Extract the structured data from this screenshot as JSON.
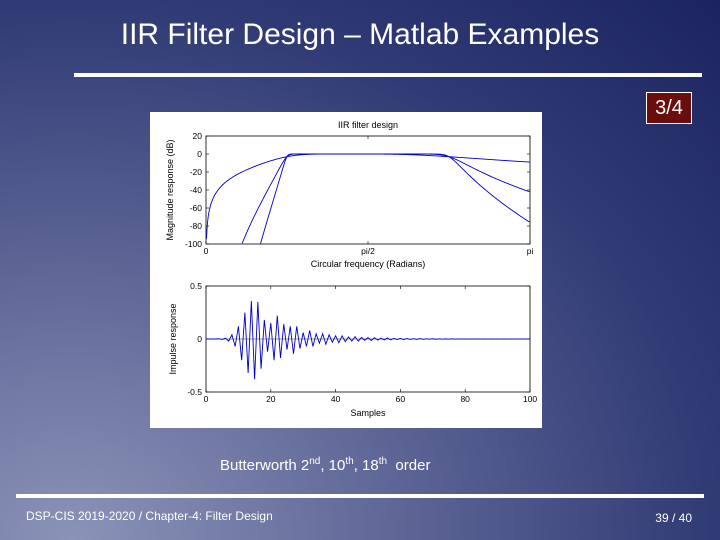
{
  "slide": {
    "title": "IIR Filter Design – Matlab Examples",
    "page_badge": "3/4",
    "caption": {
      "text": "Butterworth 2",
      "sup1": "nd",
      "mid1": ", 10",
      "sup2": "th",
      "mid2": ", 18",
      "sup3": "th",
      "tail": "  order"
    },
    "footer_left": "DSP-CIS 2019-2020  /  Chapter-4: Filter Design",
    "footer_right": "39 / 40"
  },
  "colors": {
    "curve": "#0000cc",
    "badge_bg": "#6a0d0d"
  },
  "chart_data": [
    {
      "type": "line",
      "title": "IIR filter design",
      "xlabel": "Circular frequency (Radians)",
      "ylabel": "Magnitude response (dB)",
      "xlim": [
        0,
        3.1416
      ],
      "ylim": [
        -100,
        20
      ],
      "x_ticks": [
        {
          "value": 0,
          "label": "0"
        },
        {
          "value": 1.5708,
          "label": "pi/2"
        },
        {
          "value": 3.1416,
          "label": "pi"
        }
      ],
      "y_ticks": [
        {
          "value": 20,
          "label": "20"
        },
        {
          "value": 0,
          "label": "0"
        },
        {
          "value": -20,
          "label": "-20"
        },
        {
          "value": -40,
          "label": "-40"
        },
        {
          "value": -60,
          "label": "-60"
        },
        {
          "value": -80,
          "label": "-80"
        },
        {
          "value": -100,
          "label": "-100"
        }
      ],
      "passband": [
        0.785,
        2.356
      ],
      "series": [
        {
          "order": 2
        },
        {
          "order": 10
        },
        {
          "order": 18
        }
      ]
    },
    {
      "type": "line",
      "title": "",
      "xlabel": "Samples",
      "ylabel": "Impulse response",
      "xlim": [
        0,
        100
      ],
      "ylim": [
        -0.5,
        0.5
      ],
      "x_ticks": [
        {
          "value": 0,
          "label": "0"
        },
        {
          "value": 20,
          "label": "20"
        },
        {
          "value": 40,
          "label": "40"
        },
        {
          "value": 60,
          "label": "60"
        },
        {
          "value": 80,
          "label": "80"
        },
        {
          "value": 100,
          "label": "100"
        }
      ],
      "y_ticks": [
        {
          "value": 0.5,
          "label": "0.5"
        },
        {
          "value": 0,
          "label": "0"
        },
        {
          "value": -0.5,
          "label": "-0.5"
        }
      ],
      "series": [
        {
          "x": [
            0,
            1,
            2,
            3,
            4,
            5,
            6,
            7,
            8,
            9,
            10,
            11,
            12,
            13,
            14,
            15,
            16,
            17,
            18,
            19,
            20,
            21,
            22,
            23,
            24,
            25,
            26,
            27,
            28,
            29,
            30,
            31,
            32,
            33,
            34,
            35,
            36,
            37,
            38,
            39,
            40,
            41,
            42,
            43,
            44,
            45,
            46,
            47,
            48,
            49,
            50,
            51,
            52,
            53,
            54,
            55,
            56,
            57,
            58,
            59,
            60,
            61,
            62,
            63,
            64,
            65,
            66,
            67,
            68,
            69,
            70,
            71,
            72,
            73,
            74,
            75,
            76,
            77,
            78,
            79,
            80,
            81,
            82,
            83,
            84,
            85,
            86,
            87,
            88,
            89,
            90,
            91,
            92,
            93,
            94,
            95,
            96,
            97,
            98,
            99,
            100
          ],
          "y": [
            0,
            0,
            0,
            0,
            0.002,
            -0.004,
            0.008,
            -0.02,
            0.04,
            -0.07,
            0.12,
            -0.2,
            0.25,
            -0.32,
            0.36,
            -0.38,
            0.35,
            -0.28,
            0.18,
            -0.12,
            0.15,
            -0.2,
            0.22,
            -0.18,
            0.14,
            -0.1,
            0.12,
            -0.14,
            0.12,
            -0.09,
            0.06,
            -0.07,
            0.08,
            -0.07,
            0.05,
            -0.04,
            0.05,
            -0.05,
            0.04,
            -0.03,
            0.03,
            -0.035,
            0.03,
            -0.025,
            0.02,
            -0.02,
            0.022,
            -0.02,
            0.015,
            -0.012,
            0.013,
            -0.014,
            0.012,
            -0.01,
            0.008,
            -0.009,
            0.009,
            -0.008,
            0.006,
            -0.005,
            0.006,
            -0.006,
            0.005,
            -0.004,
            0.003,
            -0.004,
            0.004,
            -0.003,
            0.002,
            -0.002,
            0.003,
            -0.003,
            0.002,
            -0.002,
            0.0015,
            -0.002,
            0.002,
            -0.0015,
            0.001,
            -0.001,
            0.001,
            -0.001,
            0.001,
            -0.001,
            0.0008,
            -0.0008,
            0.0008,
            -0.0007,
            0.0005,
            -0.0005,
            0.0005,
            -0.0005,
            0.0004,
            -0.0003,
            0.0003,
            -0.0003,
            0.0003,
            -0.0002,
            0.0002,
            -0.0002,
            0
          ]
        }
      ]
    }
  ]
}
